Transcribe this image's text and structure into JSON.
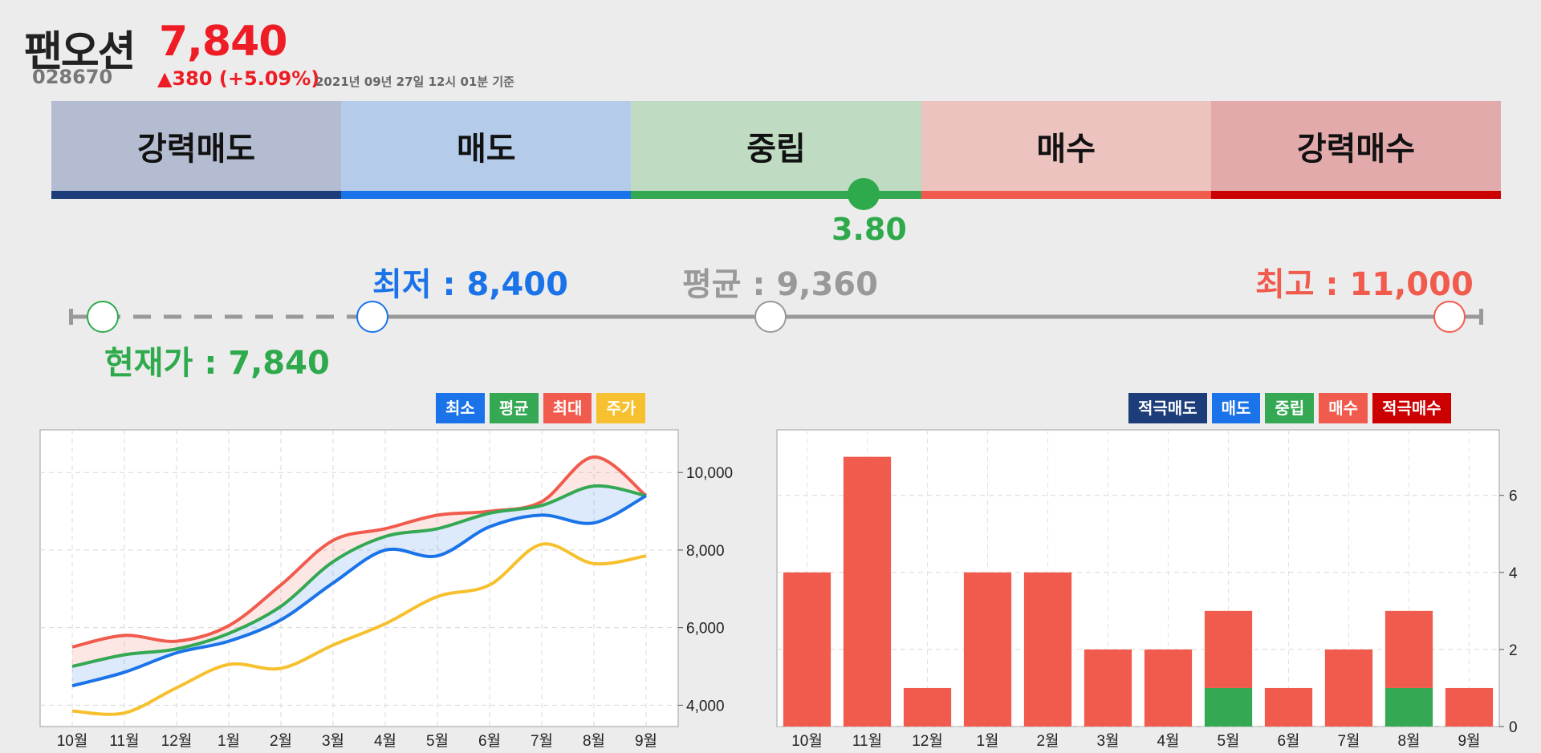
{
  "header": {
    "name": "팬오션",
    "price": "7,840",
    "code": "028670",
    "change": "▲380 (+5.09%)",
    "time": "2021년 09년 27일 12시 01분 기준"
  },
  "rating": {
    "segments": [
      {
        "label": "강력매도",
        "bg": "#b3bcd1",
        "line": "#1c3d7a"
      },
      {
        "label": "매도",
        "bg": "#b5cbea",
        "line": "#1a73e8"
      },
      {
        "label": "중립",
        "bg": "#bfdcc3",
        "line": "#34a853"
      },
      {
        "label": "매수",
        "bg": "#edc3bf",
        "line": "#f15b4e"
      },
      {
        "label": "강력매수",
        "bg": "#e3aaab",
        "line": "#cc0000"
      }
    ],
    "score": "3.80"
  },
  "range": {
    "current_label": "현재가 : 7,840",
    "low_label": "최저 : 8,400",
    "avg_label": "평균 : 9,360",
    "high_label": "최고 : 11,000",
    "current_color": "#2eaa4c",
    "low_color": "#1a73e8",
    "avg_color": "#999999",
    "high_color": "#f15b4e"
  },
  "legend_left": [
    {
      "label": "최소",
      "color": "#1a73e8"
    },
    {
      "label": "평균",
      "color": "#34a853"
    },
    {
      "label": "최대",
      "color": "#f15b4e"
    },
    {
      "label": "주가",
      "color": "#f6c02e"
    }
  ],
  "legend_right": [
    {
      "label": "적극매도",
      "color": "#1c3d7a"
    },
    {
      "label": "매도",
      "color": "#1a73e8"
    },
    {
      "label": "중립",
      "color": "#34a853"
    },
    {
      "label": "매수",
      "color": "#f15b4e"
    },
    {
      "label": "적극매수",
      "color": "#cc0000"
    }
  ],
  "chart_data": [
    {
      "type": "line",
      "categories": [
        "10월",
        "11월",
        "12월",
        "1월",
        "2월",
        "3월",
        "4월",
        "5월",
        "6월",
        "7월",
        "8월",
        "9월"
      ],
      "yticks": [
        4000,
        6000,
        8000,
        10000
      ],
      "ytick_labels": [
        "4,000",
        "6,000",
        "8,000",
        "10,000"
      ],
      "ylim": [
        3450,
        11100
      ],
      "series": [
        {
          "name": "최소",
          "color": "#1a73e8",
          "values": [
            4500,
            4850,
            5350,
            5650,
            6200,
            7150,
            8000,
            7850,
            8600,
            8900,
            8700,
            9400
          ]
        },
        {
          "name": "평균",
          "color": "#34a853",
          "values": [
            5000,
            5300,
            5450,
            5850,
            6550,
            7700,
            8350,
            8550,
            8950,
            9150,
            9650,
            9400
          ]
        },
        {
          "name": "최대",
          "color": "#f15b4e",
          "values": [
            5500,
            5800,
            5650,
            6050,
            7100,
            8250,
            8550,
            8900,
            9000,
            9250,
            10400,
            9400
          ]
        },
        {
          "name": "주가",
          "color": "#f6c02e",
          "values": [
            3850,
            3800,
            4450,
            5050,
            4950,
            5550,
            6100,
            6800,
            7100,
            8150,
            7650,
            7850
          ]
        }
      ],
      "grid": true,
      "y_axis_side": "right"
    },
    {
      "type": "bar",
      "stacked": true,
      "categories": [
        "10월",
        "11월",
        "12월",
        "1월",
        "2월",
        "3월",
        "4월",
        "5월",
        "6월",
        "7월",
        "8월",
        "9월"
      ],
      "yticks": [
        0,
        2,
        4,
        6
      ],
      "ylim": [
        0,
        7.7
      ],
      "series": [
        {
          "name": "적극매도",
          "color": "#1c3d7a",
          "values": [
            0,
            0,
            0,
            0,
            0,
            0,
            0,
            0,
            0,
            0,
            0,
            0
          ]
        },
        {
          "name": "매도",
          "color": "#1a73e8",
          "values": [
            0,
            0,
            0,
            0,
            0,
            0,
            0,
            0,
            0,
            0,
            0,
            0
          ]
        },
        {
          "name": "중립",
          "color": "#34a853",
          "values": [
            0,
            0,
            0,
            0,
            0,
            0,
            0,
            1,
            0,
            0,
            1,
            0
          ]
        },
        {
          "name": "매수",
          "color": "#f15b4e",
          "values": [
            4,
            7,
            1,
            4,
            4,
            2,
            2,
            2,
            1,
            2,
            2,
            1
          ]
        },
        {
          "name": "적극매수",
          "color": "#cc0000",
          "values": [
            0,
            0,
            0,
            0,
            0,
            0,
            0,
            0,
            0,
            0,
            0,
            0
          ]
        }
      ],
      "grid": true,
      "y_axis_side": "right"
    }
  ]
}
